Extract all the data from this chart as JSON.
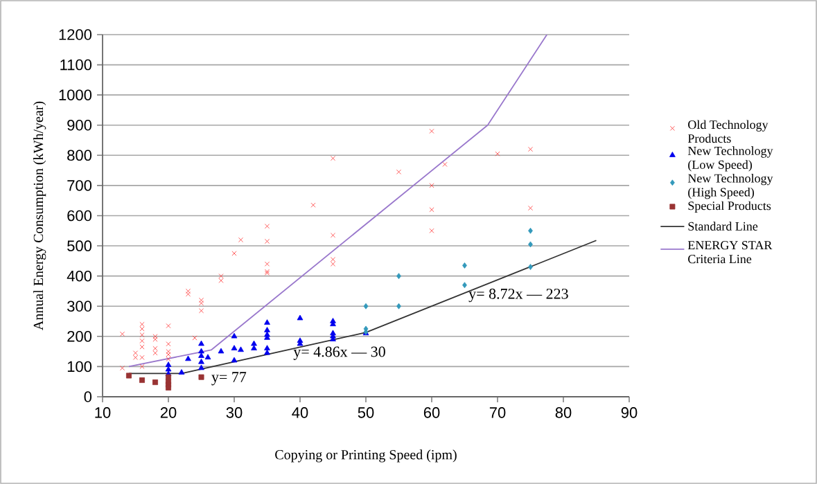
{
  "chart_data": {
    "type": "scatter",
    "xlabel": "Copying or Printing Speed (ipm)",
    "ylabel": "Annual Energy Consumption (kWh/year)",
    "xlim": [
      10,
      90
    ],
    "xticks": [
      10,
      20,
      30,
      40,
      50,
      60,
      70,
      80,
      90
    ],
    "ylim": [
      0,
      1200
    ],
    "yticks": [
      0,
      100,
      200,
      300,
      400,
      500,
      600,
      700,
      800,
      900,
      1000,
      1100,
      1200
    ],
    "grid": "y",
    "legend": "right",
    "series": [
      {
        "name": "Old Technology Products",
        "marker": "cross",
        "color": "#ff3333",
        "x": [
          13,
          13,
          15,
          15,
          16,
          16,
          16,
          16,
          16,
          16,
          16,
          18,
          18,
          18,
          18,
          20,
          20,
          20,
          20,
          20,
          23,
          23,
          24,
          25,
          25,
          25,
          28,
          28,
          30,
          31,
          35,
          35,
          35,
          35,
          35,
          42,
          45,
          45,
          45,
          45,
          55,
          60,
          60,
          60,
          60,
          62,
          70,
          75,
          75
        ],
        "values": [
          208,
          95,
          145,
          130,
          240,
          225,
          205,
          185,
          165,
          130,
          100,
          200,
          190,
          160,
          145,
          235,
          175,
          150,
          140,
          125,
          350,
          340,
          195,
          320,
          310,
          285,
          400,
          385,
          475,
          520,
          565,
          515,
          440,
          415,
          410,
          635,
          790,
          535,
          455,
          440,
          745,
          880,
          700,
          620,
          550,
          770,
          805,
          820,
          625
        ]
      },
      {
        "name": "New Technology (Low Speed)",
        "marker": "triangle",
        "color": "#0000ee",
        "x": [
          20,
          20,
          20,
          22,
          23,
          25,
          25,
          25,
          25,
          25,
          26,
          28,
          30,
          30,
          30,
          31,
          33,
          33,
          35,
          35,
          35,
          35,
          35,
          35,
          40,
          40,
          40,
          45,
          45,
          45,
          45,
          45,
          50
        ],
        "values": [
          105,
          90,
          75,
          80,
          125,
          175,
          150,
          135,
          115,
          95,
          130,
          150,
          200,
          160,
          120,
          155,
          175,
          160,
          245,
          220,
          205,
          195,
          160,
          145,
          260,
          185,
          175,
          250,
          240,
          210,
          200,
          190,
          210
        ]
      },
      {
        "name": "New Technology (High Speed)",
        "marker": "diamond",
        "color": "#3399bb",
        "x": [
          50,
          50,
          50,
          55,
          55,
          65,
          65,
          75,
          75,
          75
        ],
        "values": [
          300,
          225,
          215,
          400,
          300,
          435,
          370,
          550,
          505,
          430
        ]
      },
      {
        "name": "Special Products",
        "marker": "square",
        "color": "#993333",
        "x": [
          14,
          16,
          18,
          20,
          20,
          20,
          20,
          25
        ],
        "values": [
          70,
          55,
          48,
          65,
          50,
          40,
          30,
          65
        ]
      },
      {
        "name": "Standard Line",
        "type": "line",
        "marker": "none",
        "line_style": "solid",
        "color": "#333333",
        "x": [
          14,
          22,
          50,
          85
        ],
        "values": [
          77,
          77,
          213,
          518
        ]
      },
      {
        "name": "ENERGY STAR Criteria Line",
        "type": "line",
        "marker": "none",
        "line_style": "solid",
        "color": "#9977cc",
        "x": [
          14,
          26.5,
          68.5,
          77.5
        ],
        "values": [
          100,
          155,
          900,
          1200
        ]
      }
    ],
    "annotations": [
      "y= 77",
      "y= 4.86x — 30",
      "y= 8.72x — 223"
    ]
  }
}
